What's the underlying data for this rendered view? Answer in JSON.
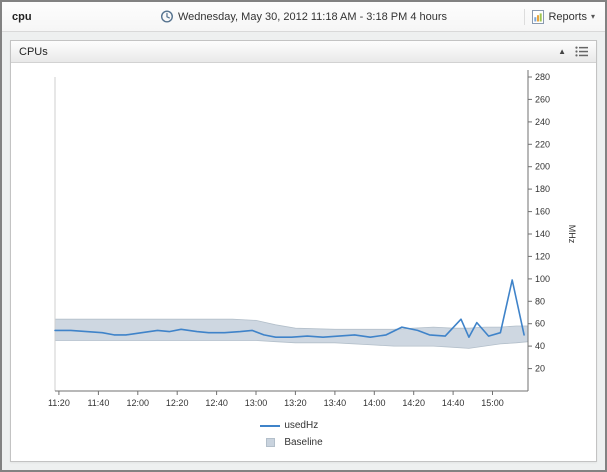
{
  "toolbar": {
    "title": "cpu",
    "time_range": "Wednesday, May 30, 2012 11:18 AM - 3:18 PM 4 hours",
    "reports_label": "Reports"
  },
  "panel": {
    "title": "CPUs"
  },
  "chart_data": {
    "type": "line",
    "title": "CPUs",
    "xlabel": "",
    "ylabel": "MHz",
    "ylim": [
      0,
      280
    ],
    "yticks": [
      20,
      40,
      60,
      80,
      100,
      120,
      140,
      160,
      180,
      200,
      220,
      240,
      260,
      280
    ],
    "x_unit": "minutes since 11:18 AM",
    "x_domain_minutes": [
      0,
      240
    ],
    "grid": false,
    "legend_position": "bottom",
    "xticks": [
      {
        "t": 2,
        "label": "11:20"
      },
      {
        "t": 22,
        "label": "11:40"
      },
      {
        "t": 42,
        "label": "12:00"
      },
      {
        "t": 62,
        "label": "12:20"
      },
      {
        "t": 82,
        "label": "12:40"
      },
      {
        "t": 102,
        "label": "13:00"
      },
      {
        "t": 122,
        "label": "13:20"
      },
      {
        "t": 142,
        "label": "13:40"
      },
      {
        "t": 162,
        "label": "14:00"
      },
      {
        "t": 182,
        "label": "14:20"
      },
      {
        "t": 202,
        "label": "14:40"
      },
      {
        "t": 222,
        "label": "15:00"
      }
    ],
    "series": [
      {
        "name": "usedHz",
        "type": "line",
        "color": "#3f83c9",
        "points": [
          [
            0,
            54
          ],
          [
            8,
            54
          ],
          [
            16,
            53
          ],
          [
            24,
            52
          ],
          [
            30,
            50
          ],
          [
            36,
            50
          ],
          [
            44,
            52
          ],
          [
            52,
            54
          ],
          [
            58,
            53
          ],
          [
            64,
            55
          ],
          [
            72,
            53
          ],
          [
            78,
            52
          ],
          [
            86,
            52
          ],
          [
            94,
            53
          ],
          [
            100,
            54
          ],
          [
            106,
            50
          ],
          [
            112,
            48
          ],
          [
            120,
            48
          ],
          [
            128,
            49
          ],
          [
            136,
            48
          ],
          [
            144,
            49
          ],
          [
            152,
            50
          ],
          [
            160,
            48
          ],
          [
            168,
            50
          ],
          [
            176,
            57
          ],
          [
            184,
            54
          ],
          [
            190,
            50
          ],
          [
            198,
            49
          ],
          [
            206,
            64
          ],
          [
            210,
            48
          ],
          [
            214,
            61
          ],
          [
            220,
            49
          ],
          [
            226,
            52
          ],
          [
            232,
            99
          ],
          [
            238,
            50
          ]
        ]
      },
      {
        "name": "Baseline",
        "type": "band",
        "color": "#c9d3de",
        "edge_color": "#b3bfca",
        "points": [
          [
            0,
            45,
            64
          ],
          [
            30,
            45,
            64
          ],
          [
            60,
            45,
            64
          ],
          [
            90,
            45,
            64
          ],
          [
            102,
            45,
            63
          ],
          [
            112,
            44,
            59
          ],
          [
            122,
            43,
            56
          ],
          [
            142,
            43,
            55
          ],
          [
            162,
            41,
            55
          ],
          [
            172,
            40,
            55
          ],
          [
            182,
            40,
            56
          ],
          [
            192,
            40,
            57
          ],
          [
            202,
            39,
            56
          ],
          [
            210,
            38,
            56
          ],
          [
            218,
            40,
            57
          ],
          [
            226,
            42,
            57
          ],
          [
            234,
            43,
            58
          ],
          [
            240,
            44,
            58
          ]
        ]
      }
    ]
  }
}
